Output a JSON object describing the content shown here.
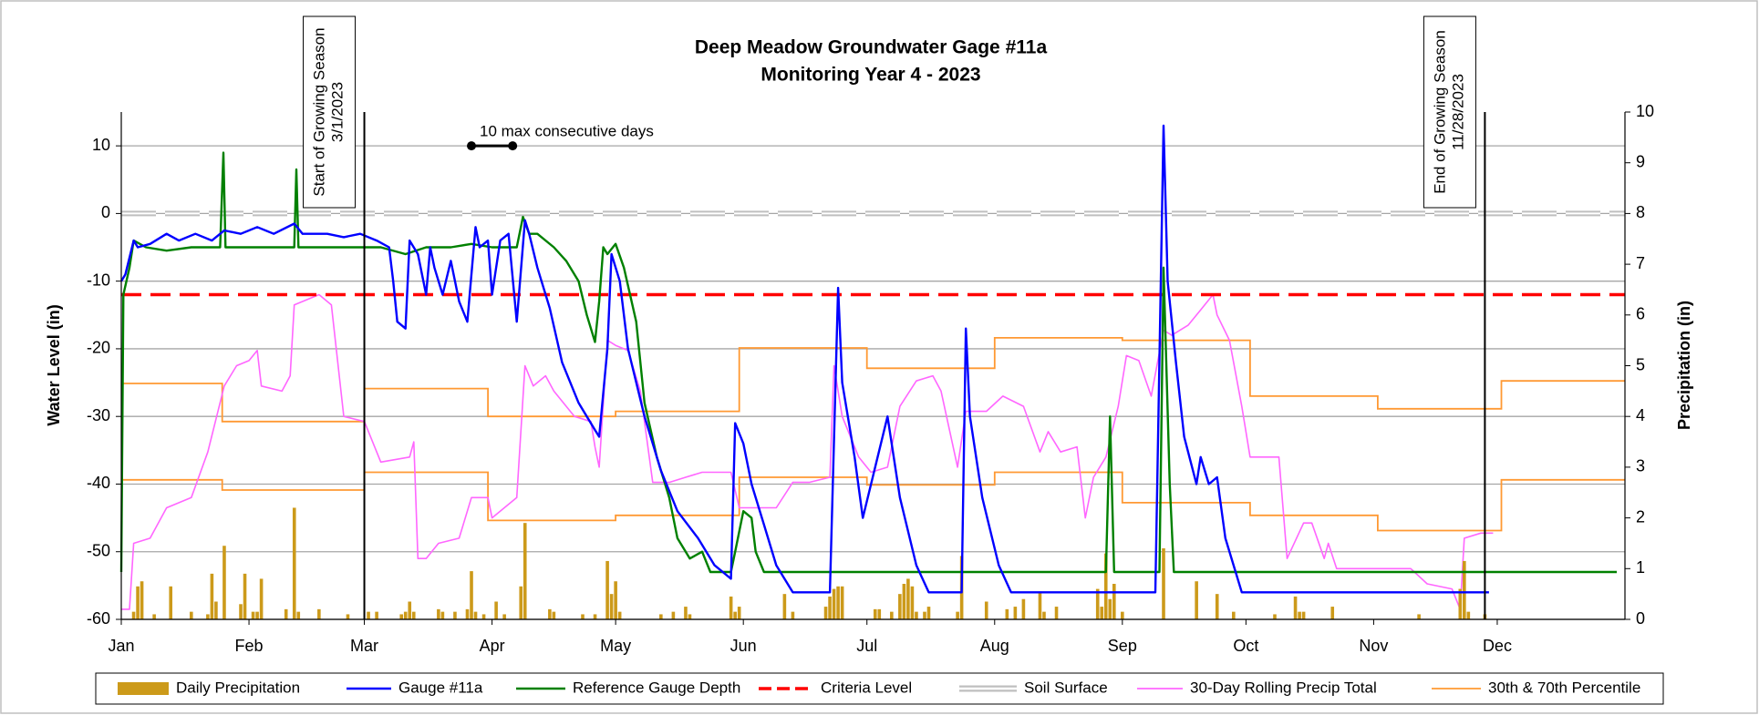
{
  "chart_data": {
    "type": "line",
    "title": "Deep Meadow Groundwater Gage #11a",
    "subtitle": "Monitoring Year 4 - 2023",
    "y_label": "Water Level (in)",
    "y2_label": "Precipitation (in)",
    "xlim": [
      0,
      365
    ],
    "xticks": [
      {
        "value": 0,
        "label": "Jan"
      },
      {
        "value": 31,
        "label": "Feb"
      },
      {
        "value": 59,
        "label": "Mar"
      },
      {
        "value": 90,
        "label": "Apr"
      },
      {
        "value": 120,
        "label": "May"
      },
      {
        "value": 151,
        "label": "Jun"
      },
      {
        "value": 181,
        "label": "Jul"
      },
      {
        "value": 212,
        "label": "Aug"
      },
      {
        "value": 243,
        "label": "Sep"
      },
      {
        "value": 273,
        "label": "Oct"
      },
      {
        "value": 304,
        "label": "Nov"
      },
      {
        "value": 334,
        "label": "Dec"
      }
    ],
    "ylim": [
      -60,
      15
    ],
    "yticks": [
      10,
      0,
      -10,
      -20,
      -30,
      -40,
      -50,
      -60
    ],
    "y2lim": [
      0,
      10
    ],
    "y2ticks": [
      0,
      1,
      2,
      3,
      4,
      5,
      6,
      7,
      8,
      9,
      10
    ],
    "grid": true,
    "legend": "bottom",
    "series": [
      {
        "name": "Daily Precipitation",
        "type": "bar",
        "axis": "y2",
        "color": "#cc9a1a",
        "x": [
          3,
          4,
          5,
          8,
          12,
          17,
          21,
          22,
          23,
          25,
          29,
          30,
          32,
          33,
          34,
          40,
          42,
          43,
          48,
          55,
          60,
          62,
          68,
          69,
          70,
          71,
          77,
          78,
          81,
          84,
          85,
          86,
          88,
          91,
          93,
          97,
          98,
          104,
          105,
          112,
          115,
          118,
          119,
          120,
          121,
          131,
          134,
          137,
          138,
          148,
          149,
          150,
          161,
          163,
          171,
          172,
          173,
          174,
          175,
          183,
          184,
          187,
          189,
          190,
          191,
          192,
          193,
          195,
          196,
          203,
          204,
          210,
          215,
          217,
          219,
          223,
          224,
          227,
          237,
          238,
          239,
          240,
          241,
          243,
          253,
          261,
          266,
          270,
          280,
          285,
          286,
          287,
          294,
          315,
          325,
          326,
          327,
          331
        ],
        "values": [
          0.15,
          0.65,
          0.75,
          0.1,
          0.65,
          0.15,
          0.1,
          0.9,
          0.35,
          1.45,
          0.3,
          0.9,
          0.15,
          0.15,
          0.8,
          0.2,
          2.2,
          0.15,
          0.2,
          0.1,
          0.15,
          0.15,
          0.1,
          0.15,
          0.35,
          0.15,
          0.2,
          0.15,
          0.15,
          0.2,
          0.95,
          0.15,
          0.1,
          0.35,
          0.1,
          0.65,
          1.9,
          0.2,
          0.15,
          0.1,
          0.1,
          1.15,
          0.5,
          0.75,
          0.15,
          0.1,
          0.15,
          0.25,
          0.1,
          0.45,
          0.15,
          0.25,
          0.5,
          0.15,
          0.25,
          0.45,
          0.6,
          0.65,
          0.65,
          0.2,
          0.2,
          0.15,
          0.5,
          0.7,
          0.8,
          0.65,
          0.15,
          0.15,
          0.25,
          0.15,
          1.25,
          0.35,
          0.2,
          0.25,
          0.4,
          0.55,
          0.15,
          0.25,
          0.6,
          0.25,
          1.3,
          0.4,
          0.7,
          0.15,
          1.4,
          0.75,
          0.5,
          0.15,
          0.1,
          0.45,
          0.15,
          0.15,
          0.25,
          0.1,
          0.6,
          1.15,
          0.15,
          0.1
        ]
      },
      {
        "name": "Gauge #11a",
        "type": "line",
        "color": "#0000ff",
        "x": [
          0,
          1,
          3,
          4,
          7,
          11,
          14,
          18,
          22,
          25,
          29,
          33,
          37,
          42,
          44,
          50,
          54,
          58,
          62,
          65,
          66,
          67,
          69,
          70,
          72,
          74,
          75,
          76,
          78,
          80,
          82,
          84,
          86,
          87,
          89,
          90,
          92,
          94,
          96,
          98,
          99,
          101,
          104,
          107,
          111,
          115,
          116,
          118,
          119,
          121,
          123,
          127,
          131,
          135,
          140,
          144,
          148,
          149,
          151,
          153,
          156,
          159,
          163,
          172,
          174,
          175,
          178,
          180,
          186,
          189,
          191,
          193,
          196,
          204,
          205,
          206,
          209,
          213,
          216,
          251,
          253,
          254,
          256,
          258,
          261,
          262,
          264,
          266,
          268,
          270,
          272,
          332
        ],
        "values": [
          -10,
          -9,
          -4,
          -5,
          -4.5,
          -3,
          -4,
          -3,
          -4,
          -2.5,
          -3,
          -2,
          -3,
          -1.5,
          -3,
          -3,
          -3.5,
          -3,
          -4,
          -5,
          -10,
          -16,
          -17,
          -4,
          -6,
          -12,
          -5,
          -8,
          -12,
          -7,
          -13,
          -16,
          -2,
          -5,
          -4,
          -12,
          -4,
          -3,
          -16,
          -1,
          -3,
          -8,
          -14,
          -22,
          -28,
          -32,
          -33,
          -20,
          -6,
          -10,
          -20,
          -30,
          -38,
          -44,
          -48,
          -52,
          -54,
          -31,
          -34,
          -40,
          -46,
          -52,
          -56,
          -56,
          -11,
          -25,
          -36,
          -45,
          -30,
          -42,
          -47,
          -52,
          -56,
          -56,
          -17,
          -30,
          -42,
          -52,
          -56,
          -56,
          13,
          -10,
          -22,
          -33,
          -40,
          -36,
          -40,
          -39,
          -48,
          -52,
          -56,
          -56
        ]
      },
      {
        "name": "Reference Gauge Depth",
        "type": "line",
        "color": "#008000",
        "x": [
          0,
          0.5,
          2,
          3,
          6,
          11,
          17,
          22,
          24,
          24.8,
          25.3,
          31,
          36,
          42,
          42.5,
          43,
          50,
          58,
          63,
          69,
          74,
          80,
          85,
          90,
          96,
          97.5,
          99,
          101,
          105,
          108,
          111,
          113,
          115,
          116,
          117,
          118,
          120,
          122,
          125,
          127,
          130,
          133,
          135,
          138,
          141,
          143,
          148,
          149,
          151,
          153,
          154,
          156,
          239,
          240,
          241,
          252,
          253,
          254.5,
          255.5,
          363
        ],
        "values": [
          -53,
          -12,
          -8,
          -4,
          -5,
          -5.5,
          -5,
          -5,
          -5,
          9,
          -5,
          -5,
          -5,
          -5,
          6.5,
          -5,
          -5,
          -5,
          -5,
          -6,
          -5,
          -5,
          -4.5,
          -5,
          -5,
          -0.5,
          -3,
          -3,
          -5,
          -7,
          -10,
          -15,
          -19,
          -13,
          -5,
          -6,
          -4.5,
          -8,
          -16,
          -28,
          -36,
          -42,
          -48,
          -51,
          -50,
          -53,
          -53,
          -50,
          -44,
          -45,
          -50,
          -53,
          -53,
          -30,
          -53,
          -53,
          -8,
          -40,
          -53,
          -53
        ]
      },
      {
        "name": "Criteria Level",
        "type": "hline",
        "color": "#ff0000",
        "value": -12
      },
      {
        "name": "Soil Surface",
        "type": "double",
        "color": "#bfbfbf",
        "value": 0
      },
      {
        "name": "30-Day Rolling Precip Total",
        "type": "line",
        "axis": "y2",
        "color": "#ff66ff",
        "x": [
          0,
          2,
          3,
          7,
          11,
          17,
          21,
          25,
          28,
          31,
          33,
          34,
          39,
          41,
          42,
          48,
          51,
          54,
          59,
          63,
          70,
          71,
          72,
          74,
          77,
          82,
          85,
          89,
          90,
          96,
          98,
          100,
          103,
          105,
          110,
          114,
          115,
          116,
          118,
          120,
          123,
          126,
          129,
          133,
          137,
          141,
          148,
          150,
          159,
          163,
          167,
          172,
          173,
          175,
          179,
          182,
          186,
          189,
          193,
          197,
          199,
          203,
          205,
          210,
          214,
          219,
          223,
          225,
          228,
          232,
          234,
          236,
          239,
          242,
          244,
          247,
          250,
          253,
          255,
          259,
          262,
          265,
          266,
          269,
          272,
          274,
          281,
          283,
          287,
          289,
          292,
          293,
          295,
          306,
          313,
          317,
          323,
          325,
          326,
          330,
          333
        ],
        "values": [
          0.2,
          0.2,
          1.5,
          1.6,
          2.2,
          2.4,
          3.3,
          4.6,
          5,
          5.1,
          5.3,
          4.6,
          4.5,
          4.8,
          6.2,
          6.4,
          6.2,
          4,
          3.9,
          3.1,
          3.2,
          3.5,
          1.2,
          1.2,
          1.5,
          1.6,
          2.4,
          2.4,
          2,
          2.4,
          5,
          4.6,
          4.8,
          4.5,
          4,
          3.9,
          3.4,
          3,
          5.5,
          5.4,
          5.3,
          4.5,
          2.7,
          2.7,
          2.8,
          2.9,
          2.9,
          2.2,
          2.2,
          2.7,
          2.7,
          2.8,
          5,
          4,
          3.2,
          2.9,
          3,
          4.2,
          4.7,
          4.8,
          4.5,
          3,
          4.1,
          4.1,
          4.4,
          4.2,
          3.3,
          3.7,
          3.3,
          3.4,
          2,
          2.8,
          3.2,
          4.2,
          5.2,
          5.1,
          4.4,
          5.7,
          5.6,
          5.8,
          6.1,
          6.4,
          6,
          5.5,
          4.2,
          3.2,
          3.2,
          1.2,
          1.9,
          1.9,
          1.2,
          1.5,
          1,
          1,
          1,
          0.7,
          0.6,
          0.2,
          1.6,
          1.7,
          1.7
        ]
      },
      {
        "name": "30th & 70th Percentile",
        "type": "band",
        "axis": "y2",
        "color": "#ff9933",
        "x": [
          0,
          24.5,
          24.5,
          59,
          59,
          89,
          89,
          120,
          120,
          150,
          150,
          181,
          181,
          212,
          212,
          243,
          243,
          274,
          274,
          305,
          305,
          335,
          335,
          365
        ],
        "upper": [
          4.65,
          4.65,
          3.9,
          3.9,
          4.55,
          4.55,
          4,
          4,
          4.1,
          4.1,
          5.35,
          5.35,
          4.95,
          4.95,
          5.55,
          5.55,
          5.5,
          5.5,
          4.4,
          4.4,
          4.15,
          4.15,
          4.7,
          4.7
        ],
        "lower": [
          2.75,
          2.75,
          2.55,
          2.55,
          2.9,
          2.9,
          1.95,
          1.95,
          2.05,
          2.05,
          2.8,
          2.8,
          2.65,
          2.65,
          2.9,
          2.9,
          2.3,
          2.3,
          2.05,
          2.05,
          1.75,
          1.75,
          2.75,
          2.75
        ]
      }
    ],
    "annotations": [
      {
        "lines": [
          "Start of Growing Season",
          "3/1/2023"
        ],
        "x": 59
      },
      {
        "lines": [
          "End of Growing Season",
          "11/28/2023"
        ],
        "x": 331
      }
    ],
    "span_annotation": {
      "text": "10 max consecutive days",
      "x": [
        85,
        95
      ],
      "y": 10
    }
  }
}
